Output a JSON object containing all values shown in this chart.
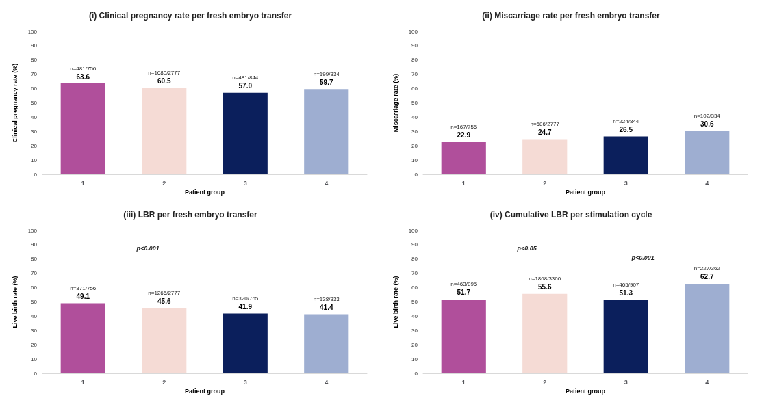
{
  "chart_data": [
    {
      "type": "bar",
      "title": "(i) Clinical pregnancy rate per fresh embryo transfer",
      "xlabel": "Patient group",
      "ylabel": "Clinical pregnancy rate (%)",
      "categories": [
        "1",
        "2",
        "3",
        "4"
      ],
      "values": [
        63.6,
        60.5,
        57.0,
        59.7
      ],
      "value_labels": [
        "63.6",
        "60.5",
        "57.0",
        "59.7"
      ],
      "colors": [
        "#b04f9b",
        "#f5dbd5",
        "#0b1f5c",
        "#9eaed1"
      ],
      "ylim": [
        0,
        100
      ],
      "yticks": [
        0,
        10,
        20,
        30,
        40,
        50,
        60,
        70,
        80,
        90,
        100
      ],
      "grid": false,
      "annotations": [
        {
          "text": "n=481/756",
          "x": "1",
          "y": 63.6
        },
        {
          "text": "n=1680/2777",
          "x": "2",
          "y": 60.5
        },
        {
          "text": "n=481/844",
          "x": "3",
          "y": 57.0
        },
        {
          "text": "n=199/334",
          "x": "4",
          "y": 59.7
        }
      ]
    },
    {
      "type": "bar",
      "title": "(ii) Miscarriage rate per fresh embryo transfer",
      "xlabel": "Patient group",
      "ylabel": "Miscarriage rate (%)",
      "categories": [
        "1",
        "2",
        "3",
        "4"
      ],
      "values": [
        22.9,
        24.7,
        26.5,
        30.6
      ],
      "colors": [
        "#b04f9b",
        "#f5dbd5",
        "#0b1f5c",
        "#9eaed1"
      ],
      "ylim": [
        0,
        100
      ],
      "yticks": [
        0,
        10,
        20,
        30,
        40,
        50,
        60,
        70,
        80,
        90,
        100
      ],
      "grid": false,
      "data_labels": true,
      "annotations": [
        {
          "text": "n=167/756",
          "x": "1",
          "y": 22.9
        },
        {
          "text": "n=686/2777",
          "x": "2",
          "y": 24.7
        },
        {
          "text": "n=224/844",
          "x": "3",
          "y": 26.5
        },
        {
          "text": "n=102/334",
          "x": "4",
          "y": 30.6
        }
      ]
    },
    {
      "type": "bar",
      "title": "(iii) LBR per fresh embryo transfer",
      "xlabel": "Patient group",
      "ylabel": "Live birth rate (%)",
      "categories": [
        "1",
        "2",
        "3",
        "4"
      ],
      "values": [
        49.1,
        45.6,
        41.9,
        41.4
      ],
      "colors": [
        "#b04f9b",
        "#f5dbd5",
        "#0b1f5c",
        "#9eaed1"
      ],
      "ylim": [
        0,
        100
      ],
      "yticks": [
        0,
        10,
        20,
        30,
        40,
        50,
        60,
        70,
        80,
        90,
        100
      ],
      "grid": false,
      "data_labels": true,
      "annotations": [
        "p<0.001",
        {
          "text": "n=371/756",
          "x": "1",
          "y": 49.1
        },
        {
          "text": "n=1266/2777",
          "x": "2",
          "y": 45.6
        },
        {
          "text": "n=320/765",
          "x": "3",
          "y": 41.9
        },
        {
          "text": "n=138/333",
          "x": "4",
          "y": 41.4
        }
      ]
    },
    {
      "type": "bar",
      "title": "(iv) Cumulative LBR per stimulation cycle",
      "xlabel": "Patient group",
      "ylabel": "Live birth rate (%)",
      "categories": [
        "1",
        "2",
        "3",
        "4"
      ],
      "values": [
        51.7,
        55.6,
        51.3,
        62.7
      ],
      "colors": [
        "#b04f9b",
        "#f5dbd5",
        "#0b1f5c",
        "#9eaed1"
      ],
      "ylim": [
        0,
        100
      ],
      "yticks": [
        0,
        10,
        20,
        30,
        40,
        50,
        60,
        70,
        80,
        90,
        100
      ],
      "grid": false,
      "data_labels": true,
      "annotations": [
        "p<0.05",
        "p<0.001",
        {
          "text": "n=463/895",
          "x": "1",
          "y": 51.7
        },
        {
          "text": "n=1868/3360",
          "x": "2",
          "y": 55.6
        },
        {
          "text": "n=465/907",
          "x": "3",
          "y": 51.3
        },
        {
          "text": "n=227/362",
          "x": "4",
          "y": 62.7
        }
      ]
    }
  ]
}
